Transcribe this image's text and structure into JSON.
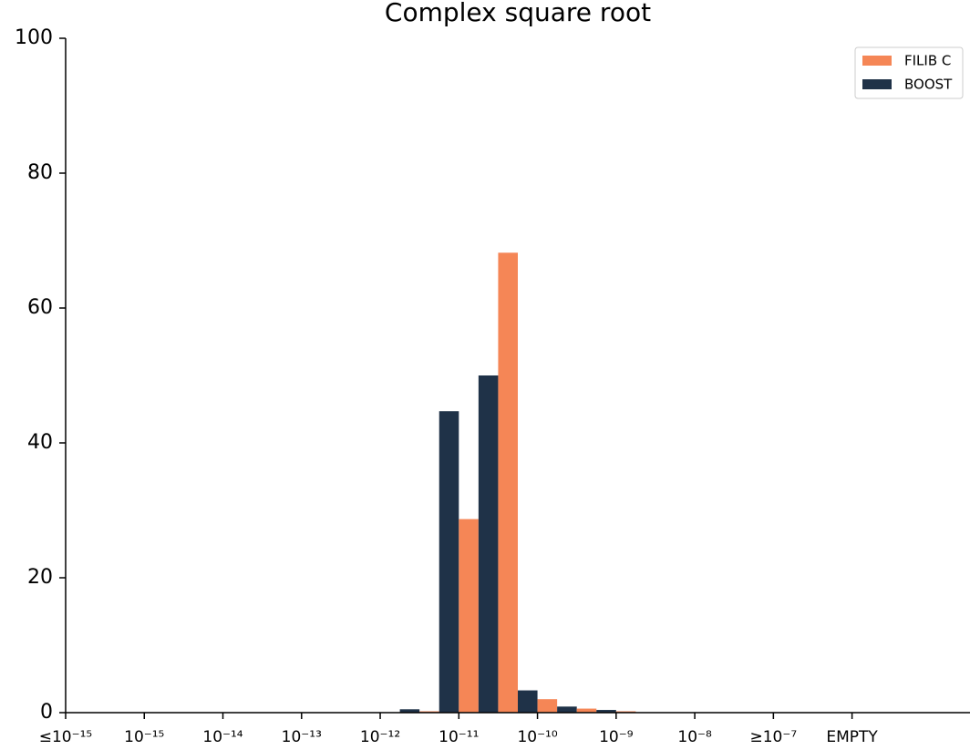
{
  "chart_data": {
    "type": "bar",
    "title": "Complex square root",
    "categories": [
      "≤10⁻¹⁵",
      null,
      "10⁻¹⁵",
      null,
      "10⁻¹⁴",
      null,
      "10⁻¹³",
      null,
      "10⁻¹²",
      null,
      "10⁻¹¹",
      null,
      "10⁻¹⁰",
      null,
      "10⁻⁹",
      null,
      "10⁻⁸",
      null,
      "≥10⁻⁷",
      null,
      "EMPTY",
      null,
      null
    ],
    "series": [
      {
        "name": "FILIB C",
        "color": "#f58656",
        "values": [
          0,
          0,
          0,
          0,
          0,
          0,
          0,
          0,
          0,
          0.2,
          28.7,
          68.2,
          2.0,
          0.6,
          0.2,
          0,
          0,
          0,
          0,
          0,
          0,
          0,
          0
        ]
      },
      {
        "name": "BOOST",
        "color": "#1f3248",
        "values": [
          0,
          0,
          0,
          0,
          0,
          0,
          0,
          0,
          0.5,
          44.7,
          50.0,
          3.3,
          0.9,
          0.4,
          0,
          0,
          0,
          0,
          0,
          0,
          0,
          0,
          0
        ]
      }
    ],
    "ylim": [
      0,
      100
    ],
    "yticks": [
      0,
      20,
      40,
      60,
      80,
      100
    ],
    "grid": false,
    "legend": "upper right"
  }
}
